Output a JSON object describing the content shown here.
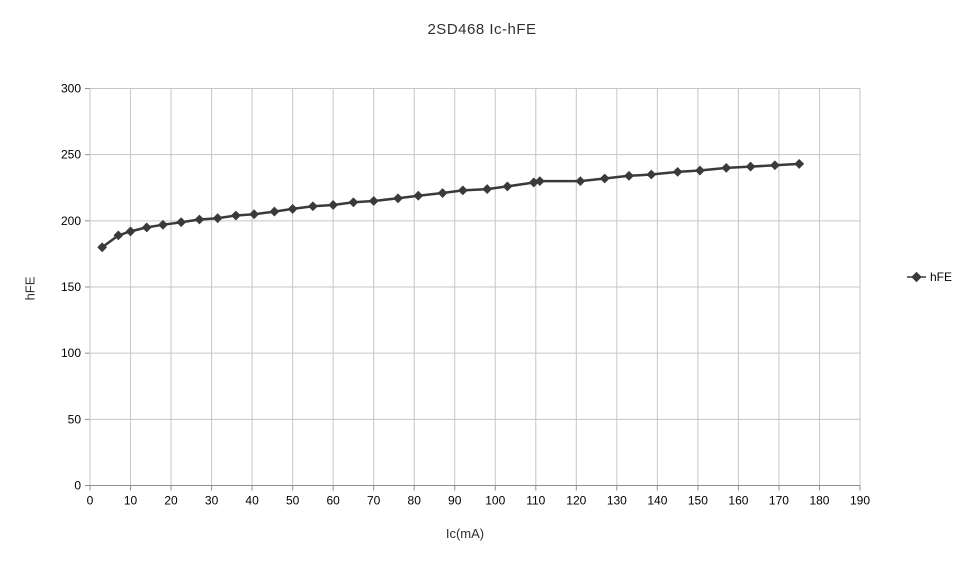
{
  "chart_data": {
    "type": "line",
    "title": "2SD468 Ic-hFE",
    "xlabel": "Ic(mA)",
    "ylabel": "hFE",
    "xlim": [
      0,
      190
    ],
    "ylim": [
      0,
      300
    ],
    "x_ticks": [
      0,
      10,
      20,
      30,
      40,
      50,
      60,
      70,
      80,
      90,
      100,
      110,
      120,
      130,
      140,
      150,
      160,
      170,
      180,
      190
    ],
    "y_ticks": [
      0,
      50,
      100,
      150,
      200,
      250,
      300
    ],
    "grid": true,
    "legend_position": "right",
    "series": [
      {
        "name": "hFE",
        "color": "#3a3a3a",
        "marker": "diamond",
        "x": [
          3,
          7,
          10,
          14,
          18,
          22.5,
          27,
          31.5,
          36,
          40.5,
          45.5,
          50,
          55,
          60,
          65,
          70,
          76,
          81,
          87,
          92,
          98,
          103,
          109.5,
          111,
          121,
          127,
          133,
          138.5,
          145,
          150.5,
          157,
          163,
          169,
          175
        ],
        "y": [
          180,
          189,
          192,
          195,
          197,
          199,
          201,
          202,
          204,
          205,
          207,
          209,
          211,
          212,
          214,
          215,
          217,
          219,
          221,
          223,
          224,
          226,
          229,
          230,
          230,
          232,
          234,
          235,
          237,
          238,
          240,
          241,
          242,
          243
        ]
      }
    ]
  },
  "colors": {
    "series": "#3a3a3a",
    "gridline": "#c6c6c6",
    "axis": "#8f8f8f",
    "tick_text": "#000000",
    "background": "#ffffff"
  }
}
